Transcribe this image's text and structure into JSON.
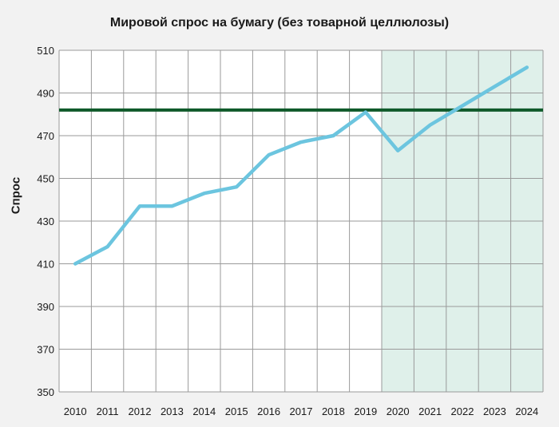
{
  "chart_data": {
    "type": "line",
    "title": "Мировой спрос на бумагу (без товарной целлюлозы)",
    "xlabel": "",
    "ylabel": "Спрос",
    "categories": [
      "2010",
      "2011",
      "2012",
      "2013",
      "2014",
      "2015",
      "2016",
      "2017",
      "2018",
      "2019",
      "2020",
      "2021",
      "2022",
      "2023",
      "2024"
    ],
    "series": [
      {
        "values": [
          410,
          418,
          437,
          437,
          443,
          446,
          461,
          467,
          470,
          481,
          463,
          475,
          484,
          493,
          502
        ],
        "color": "#6cc5df"
      }
    ],
    "reference_line": {
      "value": 482,
      "color": "#0f5a2a"
    },
    "forecast_region": {
      "from": "2020",
      "to": "2024",
      "color": "#dff0ea"
    },
    "ylim": [
      350,
      510
    ],
    "yticks": [
      510,
      490,
      470,
      450,
      430,
      410,
      390,
      370,
      350
    ],
    "grid": true,
    "legend": "none"
  }
}
